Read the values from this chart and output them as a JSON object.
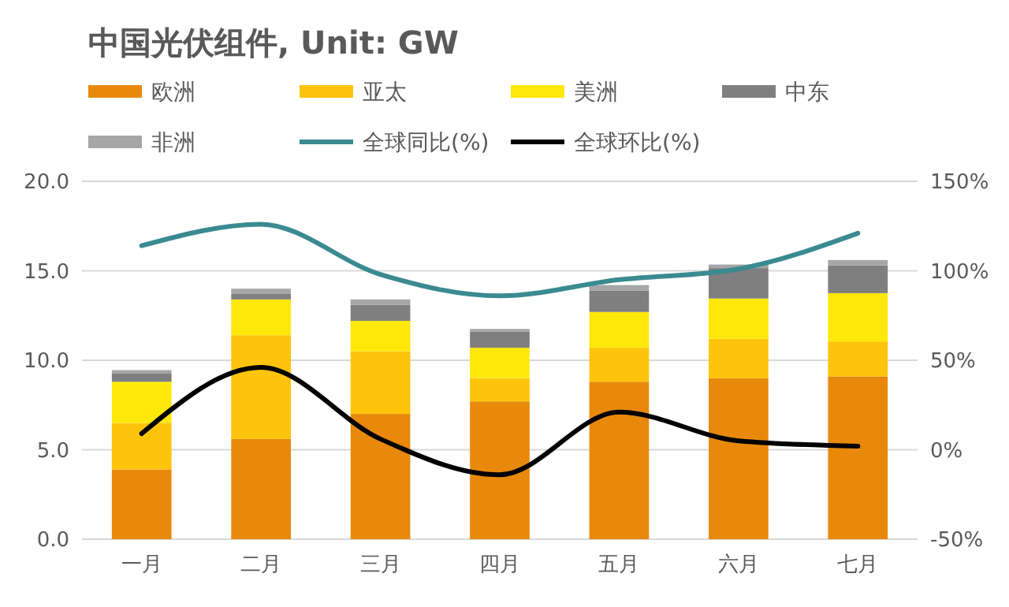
{
  "chart_data": {
    "type": "bar",
    "title": "中国光伏组件, Unit: GW",
    "stacked": true,
    "grid": "y",
    "legend": "top",
    "categories": [
      "一月",
      "二月",
      "三月",
      "四月",
      "五月",
      "六月",
      "七月"
    ],
    "ylim": [
      0,
      20
    ],
    "yticks": [
      {
        "value": 0,
        "label": "0.0"
      },
      {
        "value": 5,
        "label": "5.0"
      },
      {
        "value": 10,
        "label": "10.0"
      },
      {
        "value": 15,
        "label": "15.0"
      },
      {
        "value": 20,
        "label": "20.0"
      }
    ],
    "y2lim": [
      -50,
      150
    ],
    "y2ticks": [
      {
        "value": -50,
        "label": "-50%"
      },
      {
        "value": 0,
        "label": "0%"
      },
      {
        "value": 50,
        "label": "50%"
      },
      {
        "value": 100,
        "label": "100%"
      },
      {
        "value": 150,
        "label": "150%"
      }
    ],
    "series": [
      {
        "name": "欧洲",
        "color": "#e8890c",
        "values": [
          3.9,
          5.6,
          7.0,
          7.7,
          8.8,
          9.0,
          9.1
        ]
      },
      {
        "name": "亚太",
        "color": "#fdc40b",
        "values": [
          2.6,
          5.8,
          3.5,
          1.3,
          1.9,
          2.2,
          1.95
        ]
      },
      {
        "name": "美洲",
        "color": "#fde80a",
        "values": [
          2.3,
          2.0,
          1.7,
          1.7,
          2.0,
          2.25,
          2.7
        ]
      },
      {
        "name": "中东",
        "color": "#7f7f7f",
        "values": [
          0.45,
          0.3,
          0.9,
          0.9,
          1.2,
          1.7,
          1.55
        ]
      },
      {
        "name": "非洲",
        "color": "#a6a6a6",
        "values": [
          0.2,
          0.3,
          0.3,
          0.15,
          0.3,
          0.2,
          0.3
        ]
      },
      {
        "name": "全球同比(%)",
        "type": "line",
        "axis": "y2",
        "color": "#3a8a91",
        "values": [
          114,
          126,
          98,
          86,
          95,
          101,
          121
        ]
      },
      {
        "name": "全球环比(%)",
        "type": "line",
        "axis": "y2",
        "color": "#000000",
        "values": [
          9,
          46,
          6,
          -14,
          21,
          5,
          2
        ]
      }
    ]
  }
}
